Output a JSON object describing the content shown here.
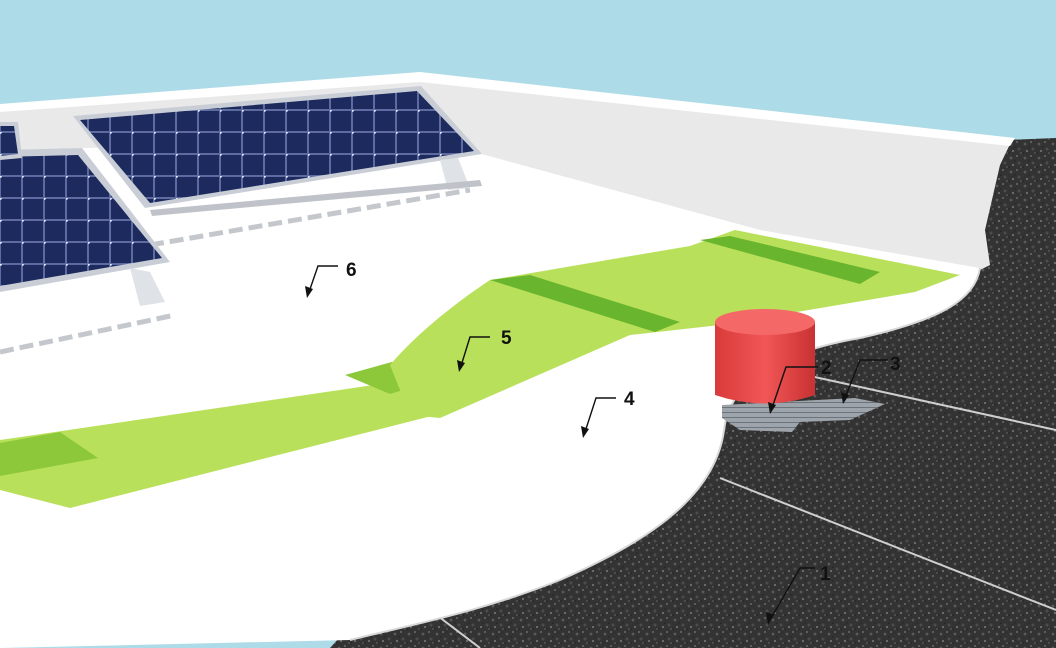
{
  "scene": {
    "colors": {
      "sky": "#aedbe8",
      "membrane": "#ffffff",
      "parapet": "#e9e9e9",
      "gravel": "#3a3a3a",
      "walkway": "#b9e05a",
      "walkway_dark": "#69b62e",
      "drain": "#ef4a4a",
      "drain_grate": "#9ea4ab",
      "solar_cell": "#1d2a5e",
      "solar_frame": "#c9ced6"
    },
    "icons": [
      "solar-panel-array",
      "roof-drain",
      "drain-grate",
      "callout-arrow"
    ]
  },
  "callouts": [
    {
      "id": "c1",
      "label": "1"
    },
    {
      "id": "c2",
      "label": "2"
    },
    {
      "id": "c3",
      "label": "3"
    },
    {
      "id": "c4",
      "label": "4"
    },
    {
      "id": "c5",
      "label": "5"
    },
    {
      "id": "c6",
      "label": "6"
    }
  ]
}
